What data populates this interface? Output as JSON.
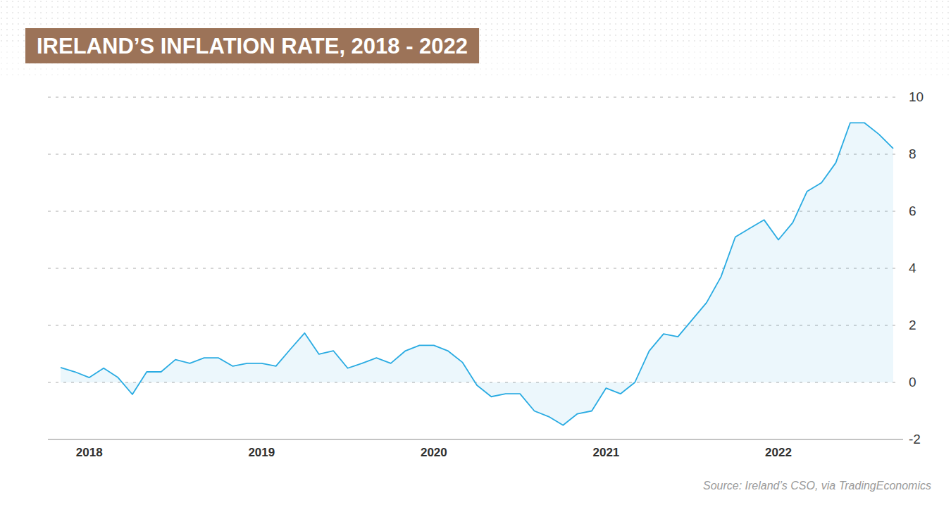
{
  "chart_data": {
    "type": "line",
    "title": "IRELAND’S INFLATION RATE, 2018 - 2022",
    "source": "Source: Ireland’s CSO, via TradingEconomics",
    "categories": [
      "",
      null,
      "2018",
      null,
      null,
      null,
      null,
      null,
      null,
      null,
      null,
      null,
      null,
      null,
      "2019",
      null,
      null,
      null,
      null,
      null,
      null,
      null,
      null,
      null,
      null,
      null,
      "2020",
      null,
      null,
      null,
      null,
      null,
      null,
      null,
      null,
      null,
      null,
      null,
      "2021",
      null,
      null,
      null,
      null,
      null,
      null,
      null,
      null,
      null,
      null,
      null,
      "2022",
      null,
      null,
      null,
      null,
      null,
      null,
      null,
      null
    ],
    "values": [
      0.52,
      0.37,
      0.17,
      0.5,
      0.17,
      -0.42,
      0.37,
      0.37,
      0.8,
      0.67,
      0.86,
      0.86,
      0.57,
      0.67,
      0.67,
      0.57,
      1.16,
      1.73,
      0.99,
      1.11,
      0.5,
      0.67,
      0.86,
      0.67,
      1.1,
      1.3,
      1.3,
      1.1,
      0.7,
      -0.1,
      -0.5,
      -0.4,
      -0.4,
      -1.0,
      -1.2,
      -1.5,
      -1.1,
      -1.0,
      -0.2,
      -0.4,
      0.0,
      1.1,
      1.7,
      1.6,
      2.2,
      2.8,
      3.7,
      5.1,
      5.4,
      5.7,
      5.0,
      5.6,
      6.7,
      7.0,
      7.7,
      9.1,
      9.1,
      8.7,
      8.2
    ],
    "color": "#29abe2",
    "ylim": [
      -2,
      10
    ],
    "yticks": [
      -2,
      0,
      2,
      4,
      6,
      8,
      10
    ],
    "grid": true
  }
}
